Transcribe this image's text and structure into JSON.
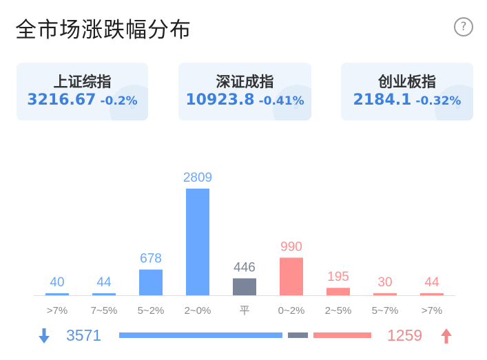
{
  "header": {
    "title": "全市场涨跌幅分布",
    "help_label": "?"
  },
  "indices": [
    {
      "name": "上证综指",
      "value": "3216.67",
      "change": "-0.2%"
    },
    {
      "name": "深证成指",
      "value": "10923.8",
      "change": "-0.41%"
    },
    {
      "name": "创业板指",
      "value": "2184.1",
      "change": "-0.32%"
    }
  ],
  "colors": {
    "down": "#6aa8ff",
    "flat": "#7a8599",
    "up": "#ff9090",
    "accent": "#3d80de"
  },
  "chart_data": {
    "type": "bar",
    "categories": [
      ">7%",
      "7~5%",
      "5~2%",
      "2~0%",
      "平",
      "0~2%",
      "2~5%",
      "5~7%",
      ">7%"
    ],
    "values": [
      40,
      44,
      678,
      2809,
      446,
      990,
      195,
      30,
      44
    ],
    "groups": [
      "down",
      "down",
      "down",
      "down",
      "flat",
      "up",
      "up",
      "up",
      "up"
    ],
    "ylim": [
      0,
      2809
    ]
  },
  "summary": {
    "down_count": "3571",
    "up_count": "1259",
    "down": 3571,
    "flat": 446,
    "up": 1259
  }
}
